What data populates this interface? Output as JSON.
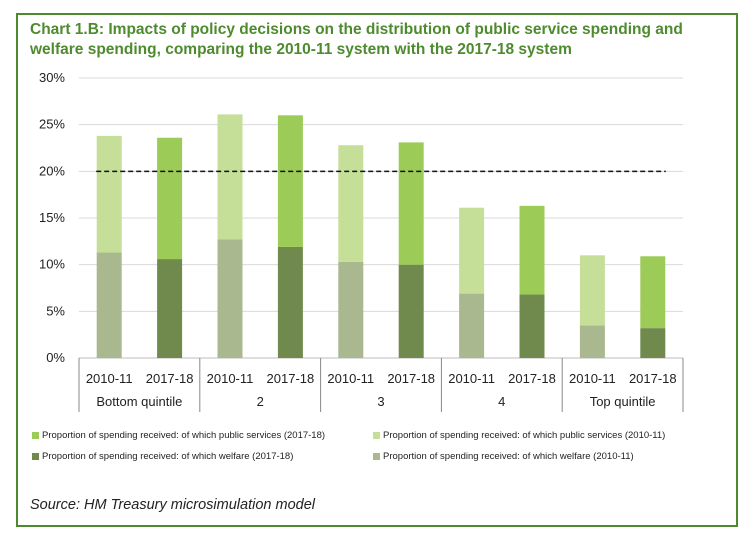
{
  "title": "Chart 1.B: Impacts of policy decisions on the distribution of public service spending and welfare spending, comparing the 2010-11 system with the 2017-18 system",
  "source": "Source: HM Treasury microsimulation model",
  "colors": {
    "public_2010": "#c5df99",
    "welfare_2010": "#a9b88f",
    "public_2017": "#9dcb58",
    "welfare_2017": "#6f8a4c",
    "title": "#4e8b2f",
    "frame": "#4d8a2e"
  },
  "chart_data": {
    "type": "bar",
    "stacked": true,
    "ylim": [
      0,
      30
    ],
    "yticks": [
      "0%",
      "5%",
      "10%",
      "15%",
      "20%",
      "25%",
      "30%"
    ],
    "grid": true,
    "reference_line": 20,
    "groups": [
      "Bottom quintile",
      "2",
      "3",
      "4",
      "Top quintile"
    ],
    "bars": [
      {
        "group": "Bottom quintile",
        "label": "2010-11",
        "welfare": 11.3,
        "public": 12.5
      },
      {
        "group": "Bottom quintile",
        "label": "2017-18",
        "welfare": 10.6,
        "public": 13.0
      },
      {
        "group": "2",
        "label": "2010-11",
        "welfare": 12.7,
        "public": 13.4
      },
      {
        "group": "2",
        "label": "2017-18",
        "welfare": 11.9,
        "public": 14.1
      },
      {
        "group": "3",
        "label": "2010-11",
        "welfare": 10.3,
        "public": 12.5
      },
      {
        "group": "3",
        "label": "2017-18",
        "welfare": 10.0,
        "public": 13.1
      },
      {
        "group": "4",
        "label": "2010-11",
        "welfare": 6.9,
        "public": 9.2
      },
      {
        "group": "4",
        "label": "2017-18",
        "welfare": 6.8,
        "public": 9.5
      },
      {
        "group": "Top quintile",
        "label": "2010-11",
        "welfare": 3.5,
        "public": 7.5
      },
      {
        "group": "Top quintile",
        "label": "2017-18",
        "welfare": 3.2,
        "public": 7.7
      }
    ],
    "legend": [
      {
        "key": "public_2017",
        "label": "Proportion of spending received: of which public services (2017-18)"
      },
      {
        "key": "public_2010",
        "label": "Proportion of spending received: of which public services (2010-11)"
      },
      {
        "key": "welfare_2017",
        "label": "Proportion of spending received: of which welfare (2017-18)"
      },
      {
        "key": "welfare_2010",
        "label": "Proportion of spending received: of which welfare (2010-11)"
      }
    ]
  }
}
